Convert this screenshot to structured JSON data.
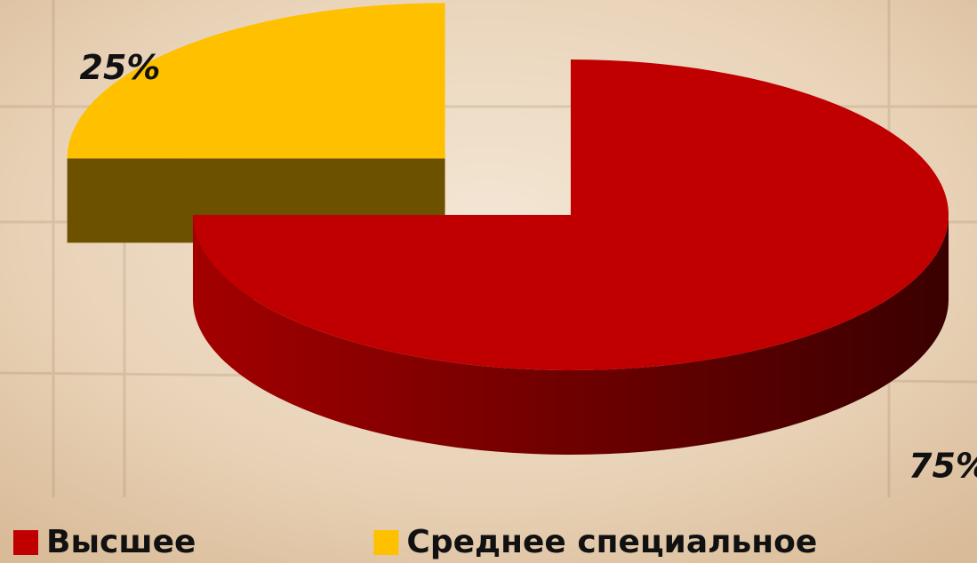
{
  "chart_data": {
    "type": "pie3d",
    "categories": [
      "Высшее",
      "Среднее специальное"
    ],
    "values": [
      75,
      25
    ],
    "value_labels": [
      "75%",
      "25%"
    ],
    "colors": [
      "#c00000",
      "#ffc000"
    ],
    "legend": "bottom"
  }
}
